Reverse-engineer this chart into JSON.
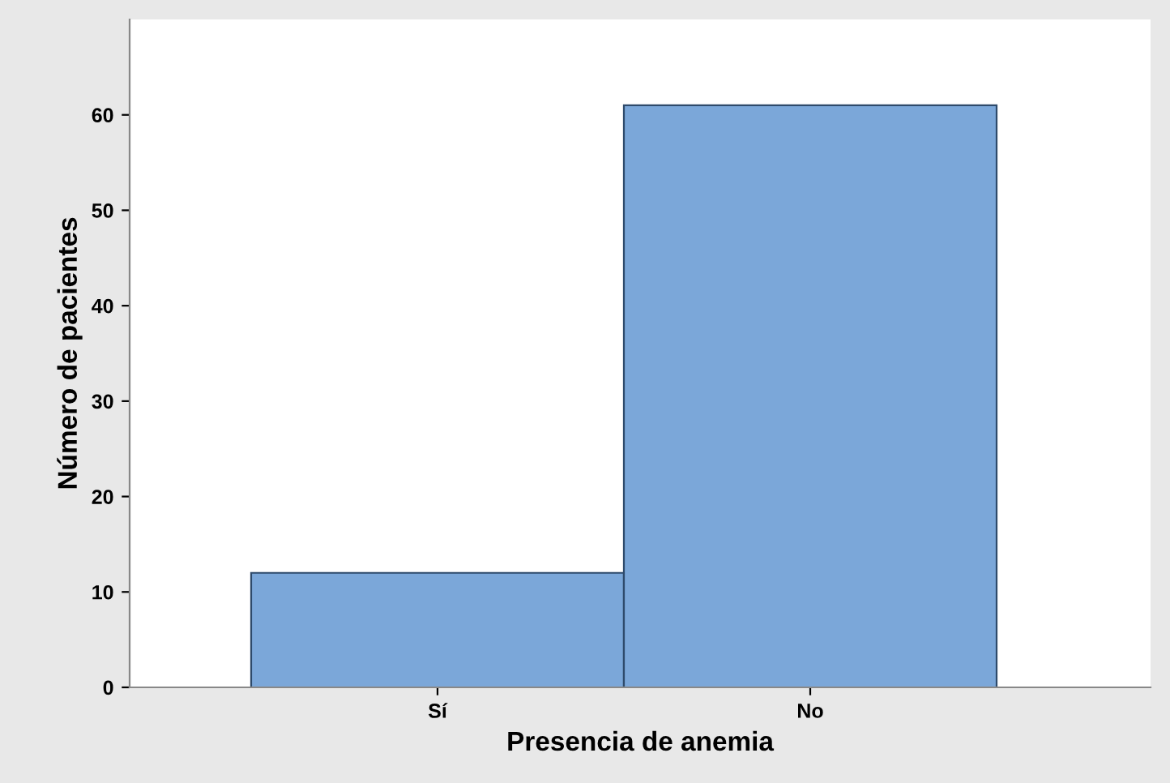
{
  "chart_data": {
    "type": "bar",
    "xlabel": "Presencia de anemia",
    "ylabel": "Número de pacientes",
    "categories": [
      "Sí",
      "No"
    ],
    "values": [
      12,
      61
    ],
    "color": "#7ba7d9",
    "ylim": [
      0,
      70
    ],
    "yticks": [
      0,
      10,
      20,
      30,
      40,
      50,
      60
    ],
    "grid": false,
    "legend": false
  }
}
